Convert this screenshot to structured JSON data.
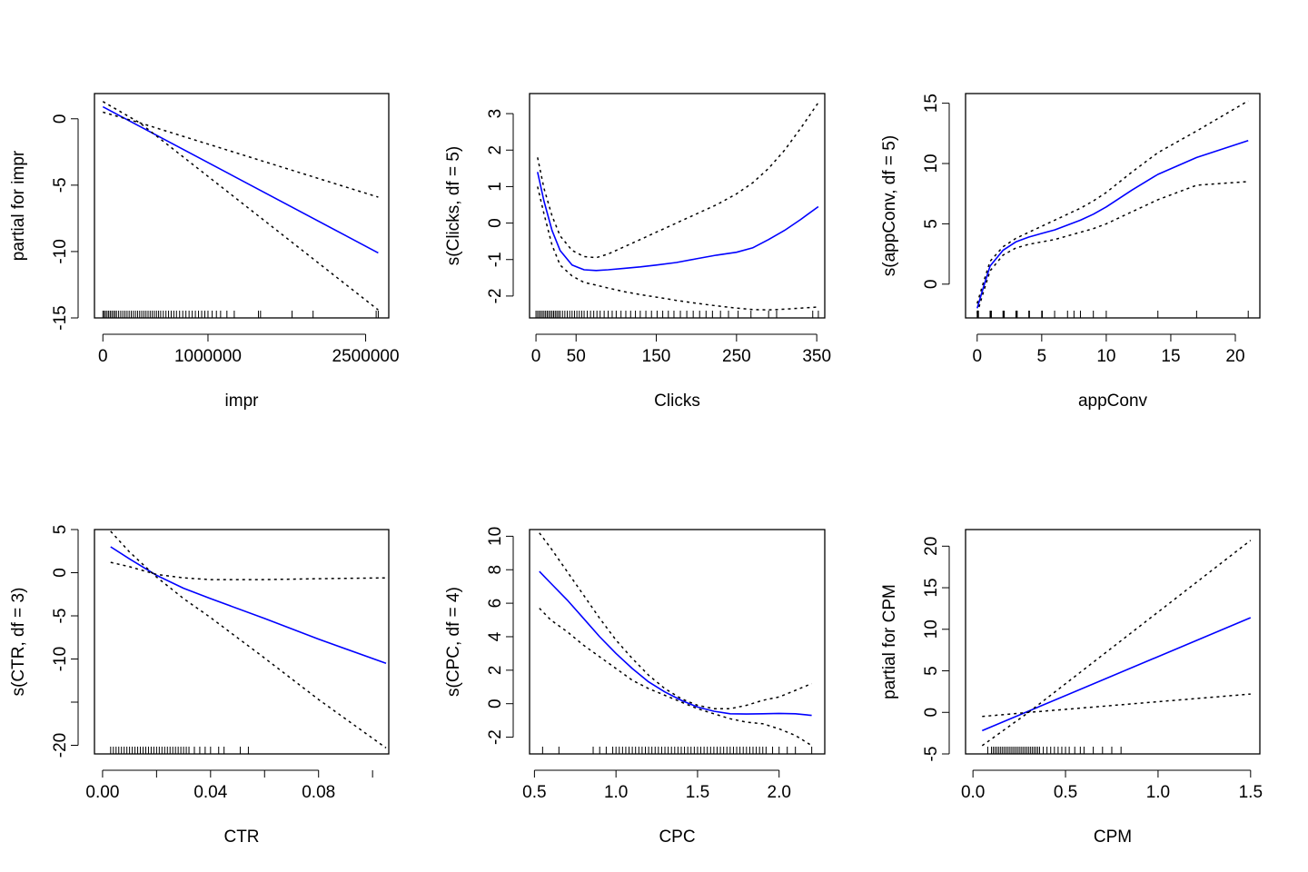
{
  "colors": {
    "fit": "#0000ff",
    "band": "#000000",
    "axis": "#000000",
    "background": "#ffffff"
  },
  "chart_data": [
    {
      "type": "line",
      "xlabel": "impr",
      "ylabel": "partial for impr",
      "xlim": [
        -80000,
        2720000
      ],
      "ylim": [
        -15,
        1.9
      ],
      "xticks": [
        0,
        1000000,
        2500000
      ],
      "xtick_labels": [
        "0",
        "1000000",
        "2500000"
      ],
      "yticks": [
        0,
        -5,
        -10,
        -15
      ],
      "ytick_labels": [
        "0",
        "-5",
        "-10",
        "-15"
      ],
      "series": [
        {
          "role": "fit",
          "x": [
            0,
            2620000
          ],
          "y": [
            0.9,
            -10.1
          ]
        },
        {
          "role": "upper",
          "x": [
            0,
            350000,
            2620000
          ],
          "y": [
            0.5,
            -0.3,
            -5.9
          ]
        },
        {
          "role": "lower",
          "x": [
            0,
            350000,
            2620000
          ],
          "y": [
            1.3,
            -0.3,
            -14.4
          ]
        }
      ],
      "rug": [
        0,
        12000,
        25000,
        40000,
        55000,
        70000,
        85000,
        100000,
        115000,
        130000,
        150000,
        170000,
        190000,
        210000,
        230000,
        250000,
        270000,
        290000,
        310000,
        330000,
        350000,
        370000,
        390000,
        410000,
        430000,
        450000,
        470000,
        490000,
        510000,
        530000,
        550000,
        575000,
        600000,
        625000,
        650000,
        675000,
        700000,
        730000,
        760000,
        790000,
        820000,
        850000,
        880000,
        910000,
        940000,
        970000,
        1000000,
        1040000,
        1080000,
        1120000,
        1180000,
        1250000,
        1480000,
        1500000,
        1800000,
        2000000,
        2600000,
        2620000
      ]
    },
    {
      "type": "line",
      "xlabel": "Clicks",
      "ylabel": "s(Clicks, df = 5)",
      "xlim": [
        -8,
        360
      ],
      "ylim": [
        -2.6,
        3.55
      ],
      "xticks": [
        0,
        50,
        150,
        250,
        350
      ],
      "xtick_labels": [
        "0",
        "50",
        "150",
        "250",
        "350"
      ],
      "yticks": [
        3,
        2,
        1,
        0,
        -1,
        -2
      ],
      "ytick_labels": [
        "3",
        "2",
        "1",
        "0",
        "-1",
        "-2"
      ],
      "series": [
        {
          "role": "fit",
          "x": [
            2,
            10,
            20,
            30,
            45,
            60,
            75,
            90,
            110,
            130,
            150,
            175,
            200,
            225,
            250,
            270,
            290,
            310,
            330,
            352
          ],
          "y": [
            1.4,
            0.6,
            -0.2,
            -0.75,
            -1.15,
            -1.28,
            -1.3,
            -1.28,
            -1.24,
            -1.2,
            -1.15,
            -1.08,
            -0.98,
            -0.88,
            -0.8,
            -0.68,
            -0.45,
            -0.2,
            0.1,
            0.45
          ]
        },
        {
          "role": "upper",
          "x": [
            2,
            10,
            20,
            30,
            45,
            60,
            75,
            90,
            110,
            130,
            150,
            175,
            200,
            225,
            250,
            270,
            290,
            310,
            330,
            352
          ],
          "y": [
            1.8,
            0.95,
            0.2,
            -0.35,
            -0.75,
            -0.92,
            -0.95,
            -0.85,
            -0.65,
            -0.45,
            -0.25,
            0.0,
            0.25,
            0.5,
            0.8,
            1.1,
            1.5,
            2.0,
            2.6,
            3.3
          ]
        },
        {
          "role": "lower",
          "x": [
            2,
            10,
            20,
            30,
            45,
            60,
            75,
            90,
            110,
            130,
            150,
            175,
            200,
            225,
            250,
            270,
            290,
            310,
            330,
            352
          ],
          "y": [
            1.0,
            0.25,
            -0.6,
            -1.15,
            -1.45,
            -1.63,
            -1.7,
            -1.78,
            -1.88,
            -1.96,
            -2.03,
            -2.12,
            -2.2,
            -2.27,
            -2.33,
            -2.37,
            -2.38,
            -2.36,
            -2.33,
            -2.3
          ]
        }
      ],
      "rug": [
        0,
        2,
        4,
        6,
        8,
        10,
        12,
        14,
        16,
        18,
        20,
        22,
        24,
        26,
        28,
        30,
        33,
        36,
        39,
        42,
        45,
        48,
        51,
        54,
        57,
        60,
        64,
        68,
        72,
        76,
        80,
        85,
        90,
        95,
        100,
        106,
        112,
        118,
        124,
        130,
        137,
        144,
        151,
        158,
        165,
        172,
        180,
        188,
        196,
        204,
        212,
        220,
        230,
        240,
        252,
        268,
        290,
        300,
        345,
        352
      ]
    },
    {
      "type": "line",
      "xlabel": "appConv",
      "ylabel": "s(appConv, df = 5)",
      "xlim": [
        -0.9,
        21.9
      ],
      "ylim": [
        -2.8,
        15.8
      ],
      "xticks": [
        0,
        5,
        10,
        15,
        20
      ],
      "xtick_labels": [
        "0",
        "5",
        "10",
        "15",
        "20"
      ],
      "yticks": [
        0,
        5,
        10,
        15
      ],
      "ytick_labels": [
        "0",
        "5",
        "10",
        "15"
      ],
      "series": [
        {
          "role": "fit",
          "x": [
            0,
            0.5,
            1,
            2,
            3,
            4,
            5,
            6,
            7,
            8,
            9,
            10,
            12,
            14,
            17,
            21
          ],
          "y": [
            -2.0,
            -0.2,
            1.5,
            2.8,
            3.5,
            3.9,
            4.2,
            4.5,
            4.9,
            5.3,
            5.8,
            6.4,
            7.8,
            9.1,
            10.5,
            11.9
          ]
        },
        {
          "role": "upper",
          "x": [
            0,
            0.5,
            1,
            2,
            3,
            4,
            5,
            6,
            7,
            8,
            9,
            10,
            12,
            14,
            17,
            21
          ],
          "y": [
            -1.6,
            0.2,
            1.9,
            3.1,
            3.8,
            4.3,
            4.8,
            5.3,
            5.8,
            6.3,
            6.9,
            7.6,
            9.3,
            10.9,
            12.7,
            15.2
          ]
        },
        {
          "role": "lower",
          "x": [
            0,
            0.5,
            1,
            2,
            3,
            4,
            5,
            6,
            7,
            8,
            9,
            10,
            12,
            14,
            17,
            21
          ],
          "y": [
            -2.4,
            -0.6,
            1.1,
            2.4,
            3.0,
            3.3,
            3.5,
            3.7,
            4.0,
            4.3,
            4.6,
            5.0,
            6.0,
            7.0,
            8.2,
            8.5
          ]
        }
      ],
      "rug": [
        0,
        0.05,
        0.1,
        1,
        1.05,
        1.1,
        2,
        2.05,
        2.1,
        3,
        3.05,
        3.1,
        4,
        4.05,
        5,
        5.05,
        6,
        7,
        7.5,
        8,
        9,
        10,
        14,
        17,
        21
      ]
    },
    {
      "type": "line",
      "xlabel": "CTR",
      "ylabel": "s(CTR, df = 3)",
      "xlim": [
        -0.003,
        0.106
      ],
      "ylim": [
        -21,
        5
      ],
      "xticks": [
        0,
        0.04,
        0.08
      ],
      "xtick_labels": [
        "0.00",
        "0.04",
        "0.08"
      ],
      "yticks": [
        5,
        0,
        -5,
        -10,
        -15,
        -20
      ],
      "ytick_labels": [
        "5",
        "0",
        "-5",
        "-10",
        "",
        "-20"
      ],
      "minor_xticks": [
        0.02,
        0.06,
        0.1
      ],
      "series": [
        {
          "role": "fit",
          "x": [
            0.003,
            0.01,
            0.02,
            0.03,
            0.04,
            0.06,
            0.08,
            0.105
          ],
          "y": [
            3.0,
            1.6,
            -0.3,
            -1.8,
            -3.0,
            -5.3,
            -7.7,
            -10.5
          ]
        },
        {
          "role": "upper",
          "x": [
            0.003,
            0.01,
            0.02,
            0.03,
            0.04,
            0.06,
            0.08,
            0.105
          ],
          "y": [
            1.2,
            0.7,
            -0.2,
            -0.6,
            -0.8,
            -0.8,
            -0.7,
            -0.6
          ]
        },
        {
          "role": "lower",
          "x": [
            0.003,
            0.01,
            0.02,
            0.03,
            0.04,
            0.06,
            0.08,
            0.105
          ],
          "y": [
            4.8,
            2.4,
            -0.5,
            -3.0,
            -5.2,
            -9.9,
            -14.7,
            -20.3
          ]
        }
      ],
      "rug": [
        0.003,
        0.004,
        0.005,
        0.006,
        0.007,
        0.008,
        0.009,
        0.01,
        0.011,
        0.012,
        0.013,
        0.014,
        0.015,
        0.016,
        0.017,
        0.018,
        0.019,
        0.02,
        0.021,
        0.022,
        0.023,
        0.024,
        0.025,
        0.026,
        0.027,
        0.028,
        0.029,
        0.03,
        0.031,
        0.032,
        0.034,
        0.036,
        0.038,
        0.04,
        0.043,
        0.045,
        0.051,
        0.054
      ]
    },
    {
      "type": "line",
      "xlabel": "CPC",
      "ylabel": "s(CPC, df = 4)",
      "xlim": [
        0.47,
        2.28
      ],
      "ylim": [
        -3.0,
        10.4
      ],
      "xticks": [
        0.5,
        1.0,
        1.5,
        2.0
      ],
      "xtick_labels": [
        "0.5",
        "1.0",
        "1.5",
        "2.0"
      ],
      "yticks": [
        10,
        8,
        6,
        4,
        2,
        0,
        -2
      ],
      "ytick_labels": [
        "10",
        "8",
        "6",
        "4",
        "2",
        "0",
        "-2"
      ],
      "series": [
        {
          "role": "fit",
          "x": [
            0.53,
            0.6,
            0.7,
            0.8,
            0.9,
            1.0,
            1.1,
            1.2,
            1.3,
            1.4,
            1.5,
            1.6,
            1.7,
            1.8,
            1.9,
            2.0,
            2.1,
            2.2
          ],
          "y": [
            7.9,
            7.2,
            6.2,
            5.1,
            4.0,
            3.0,
            2.1,
            1.3,
            0.7,
            0.2,
            -0.2,
            -0.45,
            -0.6,
            -0.62,
            -0.6,
            -0.58,
            -0.6,
            -0.7
          ]
        },
        {
          "role": "upper",
          "x": [
            0.53,
            0.6,
            0.7,
            0.8,
            0.9,
            1.0,
            1.1,
            1.2,
            1.3,
            1.4,
            1.5,
            1.6,
            1.7,
            1.8,
            1.9,
            2.0,
            2.1,
            2.2
          ],
          "y": [
            10.2,
            9.3,
            7.9,
            6.5,
            5.1,
            3.8,
            2.7,
            1.7,
            0.9,
            0.3,
            -0.1,
            -0.3,
            -0.3,
            -0.1,
            0.2,
            0.4,
            0.8,
            1.2
          ]
        },
        {
          "role": "lower",
          "x": [
            0.53,
            0.6,
            0.7,
            0.8,
            0.9,
            1.0,
            1.1,
            1.2,
            1.3,
            1.4,
            1.5,
            1.6,
            1.7,
            1.8,
            1.9,
            2.0,
            2.1,
            2.2
          ],
          "y": [
            5.7,
            5.0,
            4.3,
            3.5,
            2.8,
            2.1,
            1.4,
            0.9,
            0.5,
            0.1,
            -0.3,
            -0.6,
            -0.9,
            -1.1,
            -1.2,
            -1.5,
            -1.9,
            -2.5
          ]
        }
      ],
      "rug": [
        0.55,
        0.65,
        0.86,
        0.9,
        0.94,
        0.98,
        1.0,
        1.02,
        1.04,
        1.06,
        1.08,
        1.1,
        1.12,
        1.14,
        1.16,
        1.18,
        1.2,
        1.22,
        1.24,
        1.26,
        1.28,
        1.3,
        1.32,
        1.34,
        1.36,
        1.38,
        1.4,
        1.42,
        1.44,
        1.46,
        1.48,
        1.5,
        1.52,
        1.54,
        1.56,
        1.58,
        1.6,
        1.62,
        1.64,
        1.66,
        1.68,
        1.7,
        1.72,
        1.74,
        1.76,
        1.78,
        1.8,
        1.82,
        1.84,
        1.86,
        1.88,
        1.9,
        1.92,
        1.96,
        2.0,
        2.05,
        2.1,
        2.2
      ]
    },
    {
      "type": "line",
      "xlabel": "CPM",
      "ylabel": "partial for CPM",
      "xlim": [
        -0.04,
        1.55
      ],
      "ylim": [
        -5,
        22
      ],
      "xticks": [
        0,
        0.5,
        1.0,
        1.5
      ],
      "xtick_labels": [
        "0.0",
        "0.5",
        "1.0",
        "1.5"
      ],
      "yticks": [
        20,
        15,
        10,
        5,
        0,
        -5
      ],
      "ytick_labels": [
        "20",
        "15",
        "10",
        "5",
        "0",
        "-5"
      ],
      "series": [
        {
          "role": "fit",
          "x": [
            0.05,
            1.5
          ],
          "y": [
            -2.2,
            11.4
          ]
        },
        {
          "role": "upper",
          "x": [
            0.05,
            0.3,
            1.5
          ],
          "y": [
            -0.5,
            0.0,
            2.2
          ]
        },
        {
          "role": "lower",
          "x": [
            0.05,
            0.3,
            1.5
          ],
          "y": [
            -4.0,
            0.0,
            20.7
          ]
        }
      ],
      "rug": [
        0.08,
        0.1,
        0.11,
        0.12,
        0.13,
        0.14,
        0.15,
        0.16,
        0.17,
        0.18,
        0.19,
        0.2,
        0.21,
        0.22,
        0.23,
        0.24,
        0.25,
        0.26,
        0.27,
        0.28,
        0.29,
        0.3,
        0.31,
        0.32,
        0.33,
        0.34,
        0.35,
        0.36,
        0.38,
        0.4,
        0.42,
        0.44,
        0.46,
        0.48,
        0.5,
        0.52,
        0.55,
        0.58,
        0.6,
        0.65,
        0.7,
        0.75,
        0.8
      ]
    }
  ]
}
